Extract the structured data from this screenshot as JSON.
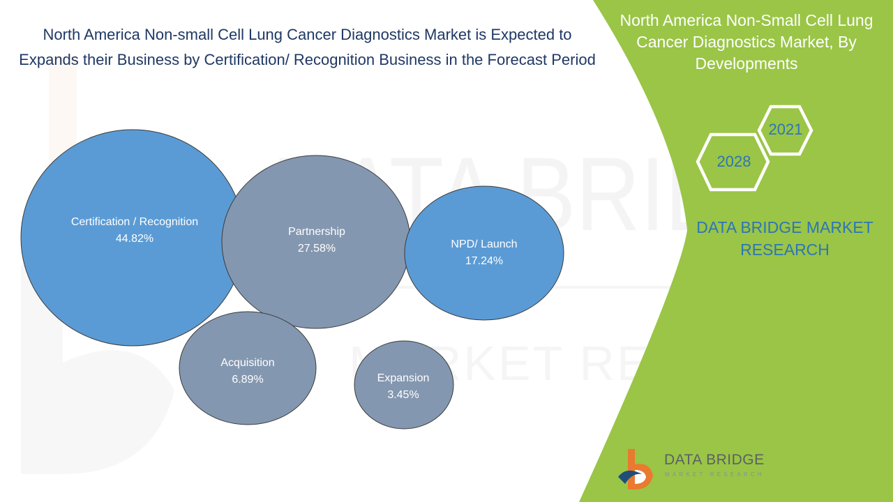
{
  "title": "North America Non-small Cell Lung Cancer Diagnostics Market is Expected to Expands their Business by Certification/ Recognition Business in the Forecast Period",
  "side_panel": {
    "title": "North America  Non-Small Cell Lung Cancer Diagnostics Market, By Developments",
    "year_start": "2021",
    "year_end": "2028",
    "brand_text": "DATA BRIDGE MARKET RESEARCH",
    "background_color": "#9ac546"
  },
  "logo": {
    "name": "DATA BRIDGE",
    "tagline": "MARKET RESEARCH"
  },
  "watermark": {
    "line1": "DATA BRIDGE",
    "line2": "MARKET RESEARCH"
  },
  "chart_data": {
    "type": "bubble",
    "series": [
      {
        "label": "Certification / Recognition",
        "value": 44.82,
        "display": "44.82%",
        "color": "#5b9bd5"
      },
      {
        "label": "Partnership",
        "value": 27.58,
        "display": "27.58%",
        "color": "#8497b0"
      },
      {
        "label": "NPD/ Launch",
        "value": 17.24,
        "display": "17.24%",
        "color": "#5b9bd5"
      },
      {
        "label": "Acquisition",
        "value": 6.89,
        "display": "6.89%",
        "color": "#8497b0"
      },
      {
        "label": "Expansion",
        "value": 3.45,
        "display": "3.45%",
        "color": "#8497b0"
      }
    ]
  }
}
